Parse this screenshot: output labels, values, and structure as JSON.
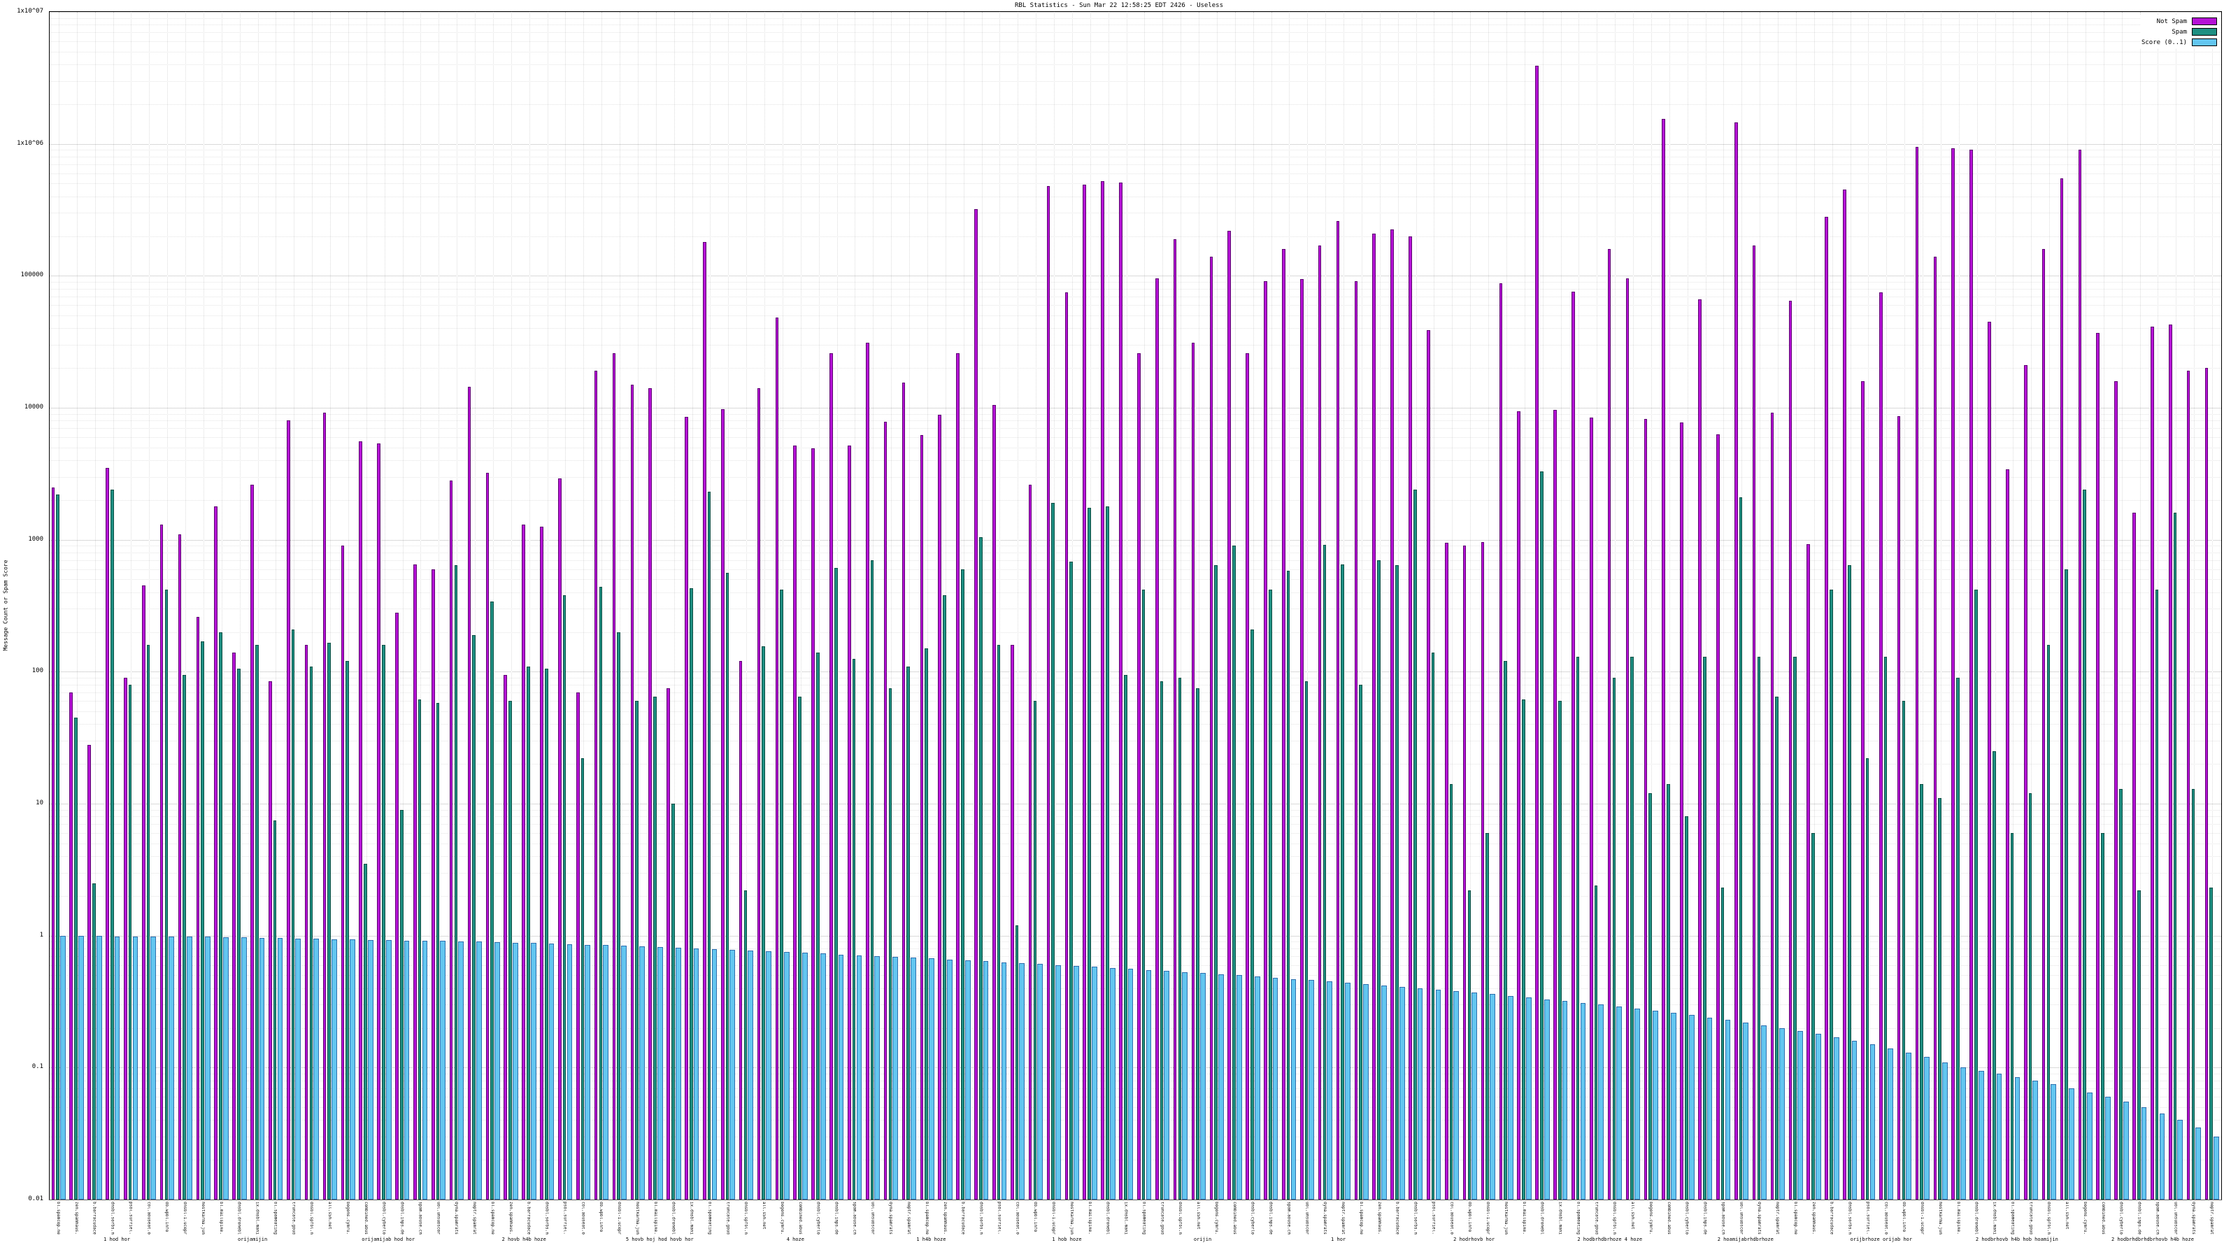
{
  "title": "RBL Statistics - Sun Mar 22 12:58:25 EDT 2426 - Useless",
  "ylabel": "Message Count or Spam Score",
  "legend": [
    {
      "label": "Not Spam"
    },
    {
      "label": "Spam"
    },
    {
      "label": "Score (0..1)"
    }
  ],
  "axis": {
    "ymin": 0.01,
    "ymax": 10000000,
    "y_ticks": [
      "0.01",
      "0.1",
      "1",
      "10",
      "100",
      "1000",
      "10000",
      "100000",
      "1x10^06",
      "1x10^07"
    ],
    "grid": "dotted",
    "scale": "log"
  },
  "chart_data": {
    "type": "bar",
    "title": "RBL Statistics - Sun Mar 22 12:58:25 EDT 2426 - Useless",
    "xlabel": "",
    "ylabel": "Message Count or Spam Score",
    "ylim": [
      0.01,
      10000000
    ],
    "legend_position": "top-right",
    "categories": [
      "bl.spamcop.net",
      "zen.spamhaus.org",
      "b.barracudacentral.org",
      "dnsbl.sorbs.net",
      "psbl.surriel.com",
      "cbl.abuseat.org",
      "db.wpbl.info",
      "dnsbl-1.uceprotect.net",
      "hostkarma.junkemailfilter.com",
      "bl.mailspike.net",
      "dnsbl.dronebl.org",
      "ix.dnsbl.manitu.net",
      "bl.spameatingmonkey.net",
      "truncate.gbudb.net",
      "dnsbl.spfbl.net",
      "all.s5h.net",
      "bogons.cymru.com",
      "combined.abuse.ch",
      "dnsbl.cyberlogic.net",
      "dnsbl.inps.de",
      "spam.abuse.ch",
      "ubl.unsubscore.com",
      "dyna.spamrats.com",
      "noptr.spamrats.com",
      "bl.spamcop.net",
      "zen.spamhaus.org",
      "b.barracudacentral.org",
      "dnsbl.sorbs.net",
      "psbl.surriel.com",
      "cbl.abuseat.org",
      "db.wpbl.info",
      "dnsbl-1.uceprotect.net",
      "hostkarma.junkemailfilter.com",
      "bl.mailspike.net",
      "dnsbl.dronebl.org",
      "ix.dnsbl.manitu.net",
      "bl.spameatingmonkey.net",
      "truncate.gbudb.net",
      "dnsbl.spfbl.net",
      "all.s5h.net",
      "bogons.cymru.com",
      "combined.abuse.ch",
      "dnsbl.cyberlogic.net",
      "dnsbl.inps.de",
      "spam.abuse.ch",
      "ubl.unsubscore.com",
      "dyna.spamrats.com",
      "noptr.spamrats.com",
      "bl.spamcop.net",
      "zen.spamhaus.org",
      "b.barracudacentral.org",
      "dnsbl.sorbs.net",
      "psbl.surriel.com",
      "cbl.abuseat.org",
      "db.wpbl.info",
      "dnsbl-1.uceprotect.net",
      "hostkarma.junkemailfilter.com",
      "bl.mailspike.net",
      "dnsbl.dronebl.org",
      "ix.dnsbl.manitu.net",
      "bl.spameatingmonkey.net",
      "truncate.gbudb.net",
      "dnsbl.spfbl.net",
      "all.s5h.net",
      "bogons.cymru.com",
      "combined.abuse.ch",
      "dnsbl.cyberlogic.net",
      "dnsbl.inps.de",
      "spam.abuse.ch",
      "ubl.unsubscore.com",
      "dyna.spamrats.com",
      "noptr.spamrats.com",
      "bl.spamcop.net",
      "zen.spamhaus.org",
      "b.barracudacentral.org",
      "dnsbl.sorbs.net",
      "psbl.surriel.com",
      "cbl.abuseat.org",
      "db.wpbl.info",
      "dnsbl-1.uceprotect.net",
      "hostkarma.junkemailfilter.com",
      "bl.mailspike.net",
      "dnsbl.dronebl.org",
      "ix.dnsbl.manitu.net",
      "bl.spameatingmonkey.net",
      "truncate.gbudb.net",
      "dnsbl.spfbl.net",
      "all.s5h.net",
      "bogons.cymru.com",
      "combined.abuse.ch",
      "dnsbl.cyberlogic.net",
      "dnsbl.inps.de",
      "spam.abuse.ch",
      "ubl.unsubscore.com",
      "dyna.spamrats.com",
      "noptr.spamrats.com",
      "bl.spamcop.net",
      "zen.spamhaus.org",
      "b.barracudacentral.org",
      "dnsbl.sorbs.net",
      "psbl.surriel.com",
      "cbl.abuseat.org",
      "db.wpbl.info",
      "dnsbl-1.uceprotect.net",
      "hostkarma.junkemailfilter.com",
      "bl.mailspike.net",
      "dnsbl.dronebl.org",
      "ix.dnsbl.manitu.net",
      "bl.spameatingmonkey.net",
      "truncate.gbudb.net",
      "dnsbl.spfbl.net",
      "all.s5h.net",
      "bogons.cymru.com",
      "combined.abuse.ch",
      "dnsbl.cyberlogic.net",
      "dnsbl.inps.de",
      "spam.abuse.ch",
      "ubl.unsubscore.com",
      "dyna.spamrats.com",
      "noptr.spamrats.com"
    ],
    "series": [
      {
        "name": "Not Spam",
        "color": "#b511d6",
        "border": "#5c0570",
        "values": [
          2500,
          70,
          28,
          3500,
          90,
          450,
          1300,
          1100,
          260,
          1800,
          140,
          2600,
          85,
          8000,
          160,
          9200,
          900,
          5600,
          5400,
          280,
          650,
          600,
          2800,
          14500,
          3200,
          95,
          1300,
          1250,
          2900,
          70,
          19000,
          26000,
          15000,
          14000,
          75,
          8500,
          180000,
          9800,
          120,
          14000,
          48000,
          5200,
          4900,
          26000,
          5200,
          31000,
          7800,
          15500,
          6200,
          8800,
          26000,
          320000,
          10500,
          160,
          2600,
          480000,
          75000,
          490000,
          520000,
          510000,
          26000,
          96000,
          190000,
          31000,
          140000,
          220000,
          26000,
          91000,
          160000,
          94000,
          170000,
          260000,
          91000,
          210000,
          225000,
          200000,
          39000,
          950,
          900,
          960,
          88000,
          9400,
          3900000,
          9700,
          76000,
          8400,
          160000,
          96000,
          8200,
          1550000,
          7700,
          66000,
          6300,
          1450000,
          170000,
          9200,
          65000,
          930,
          280000,
          450000,
          16000,
          75000,
          8600,
          950000,
          140000,
          930000,
          900000,
          45000,
          3400,
          21000,
          160000,
          550000,
          900000,
          37000,
          16000,
          1600,
          41000,
          43000,
          19000,
          20000
        ]
      },
      {
        "name": "Spam",
        "color": "#1e8f82",
        "border": "#0d4f44",
        "values": [
          2200,
          45,
          2.5,
          2400,
          80,
          160,
          420,
          95,
          170,
          200,
          105,
          160,
          7.5,
          210,
          110,
          165,
          120,
          3.5,
          160,
          9,
          62,
          58,
          640,
          190,
          340,
          60,
          110,
          105,
          380,
          22,
          440,
          200,
          60,
          65,
          10,
          430,
          2300,
          560,
          2.2,
          155,
          420,
          65,
          140,
          610,
          125,
          700,
          75,
          110,
          150,
          380,
          600,
          1050,
          160,
          1.2,
          60,
          1900,
          680,
          1750,
          1800,
          95,
          420,
          85,
          90,
          75,
          640,
          900,
          210,
          420,
          580,
          85,
          920,
          650,
          80,
          700,
          640,
          2400,
          140,
          14,
          2.2,
          6,
          120,
          62,
          3300,
          60,
          130,
          2.4,
          90,
          130,
          12,
          14,
          8,
          130,
          2.3,
          2100,
          130,
          65,
          130,
          6,
          420,
          640,
          22,
          130,
          60,
          14,
          11,
          90,
          420,
          25,
          6,
          12,
          160,
          600,
          2400,
          6,
          13,
          2.2,
          420,
          1600,
          13,
          2.3
        ]
      },
      {
        "name": "Score (0..1)",
        "color": "#63c6f0",
        "border": "#2f6fae",
        "values": [
          1.0,
          1.0,
          1.0,
          0.99,
          0.99,
          0.99,
          0.98,
          0.98,
          0.98,
          0.97,
          0.97,
          0.96,
          0.96,
          0.95,
          0.95,
          0.94,
          0.94,
          0.93,
          0.93,
          0.92,
          0.92,
          0.91,
          0.9,
          0.9,
          0.89,
          0.88,
          0.88,
          0.87,
          0.86,
          0.85,
          0.85,
          0.84,
          0.83,
          0.82,
          0.81,
          0.8,
          0.79,
          0.78,
          0.77,
          0.76,
          0.75,
          0.74,
          0.73,
          0.72,
          0.71,
          0.7,
          0.69,
          0.68,
          0.67,
          0.66,
          0.65,
          0.64,
          0.63,
          0.62,
          0.61,
          0.6,
          0.59,
          0.58,
          0.57,
          0.56,
          0.55,
          0.54,
          0.53,
          0.52,
          0.51,
          0.5,
          0.49,
          0.48,
          0.47,
          0.46,
          0.45,
          0.44,
          0.43,
          0.42,
          0.41,
          0.4,
          0.39,
          0.38,
          0.37,
          0.36,
          0.35,
          0.34,
          0.33,
          0.32,
          0.31,
          0.3,
          0.29,
          0.28,
          0.27,
          0.26,
          0.25,
          0.24,
          0.23,
          0.22,
          0.21,
          0.2,
          0.19,
          0.18,
          0.17,
          0.16,
          0.15,
          0.14,
          0.13,
          0.12,
          0.11,
          0.1,
          0.095,
          0.09,
          0.085,
          0.08,
          0.075,
          0.07,
          0.065,
          0.06,
          0.055,
          0.05,
          0.045,
          0.04,
          0.035,
          0.03
        ]
      }
    ],
    "captions": [
      "1 hod hor",
      "orijamijin",
      "orijamijab hod hor",
      "2 hovb h4b hoze",
      "5 hovb hoj hod hovb hor",
      "4 hoze",
      "1 h4b hoze",
      "1 hob hoze",
      "orijin",
      "1 hor",
      "2 hodrhovb hor",
      "2 hodbrhdbrhoze 4 hoze",
      "2 hoamijabrhdbrhoze",
      "orijbrhoze orijab hor",
      "2 hodbrhovb h4b hob hoamijin",
      "2 hodbrhdbrhdbrhovb h4b hoze"
    ]
  }
}
